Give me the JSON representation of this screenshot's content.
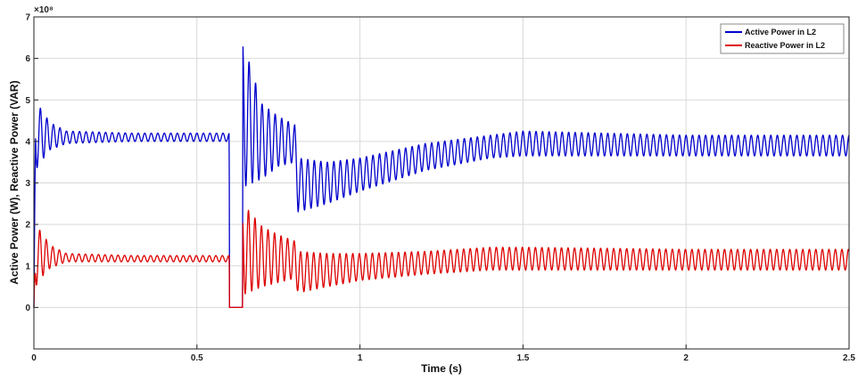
{
  "chart_data": {
    "type": "line",
    "title": "",
    "xlabel": "Time (s)",
    "ylabel": "Active Power (W), Reactive Power (VAR)",
    "y_exponent_label": "×10⁸",
    "xlim": [
      0,
      2.5
    ],
    "ylim": [
      -1,
      7
    ],
    "x_ticks": [
      0,
      0.5,
      1,
      1.5,
      2,
      2.5
    ],
    "x_tick_labels": [
      "0",
      "0.5",
      "1",
      "1.5",
      "2",
      "2.5"
    ],
    "y_ticks": [
      0,
      1,
      2,
      3,
      4,
      5,
      6,
      7
    ],
    "y_tick_labels": [
      "0",
      "1",
      "2",
      "3",
      "4",
      "5",
      "6",
      "7"
    ],
    "grid": true,
    "legend_position": "top-right",
    "series": [
      {
        "name": "Active Power in L2",
        "color": "#0000cc",
        "envelope": {
          "x": [
            0,
            0.005,
            0.02,
            0.05,
            0.1,
            0.3,
            0.599,
            0.6,
            0.64,
            0.641,
            0.7,
            0.75,
            0.8,
            0.81,
            0.9,
            1.0,
            1.2,
            1.4,
            1.5,
            2.0,
            2.5
          ],
          "upper": [
            0,
            4.9,
            4.8,
            4.45,
            4.25,
            4.2,
            4.2,
            0,
            0,
            6.4,
            4.9,
            4.6,
            4.4,
            3.6,
            3.5,
            3.6,
            3.95,
            4.15,
            4.25,
            4.15,
            4.15
          ],
          "lower": [
            0,
            3.3,
            3.5,
            3.8,
            3.95,
            4.0,
            4.0,
            0,
            0,
            2.9,
            3.1,
            3.4,
            3.5,
            2.3,
            2.5,
            2.8,
            3.3,
            3.6,
            3.65,
            3.65,
            3.65
          ]
        }
      },
      {
        "name": "Reactive Power in L2",
        "color": "#dd0000",
        "envelope": {
          "x": [
            0,
            0.005,
            0.02,
            0.05,
            0.1,
            0.3,
            0.599,
            0.6,
            0.64,
            0.641,
            0.7,
            0.75,
            0.8,
            0.81,
            0.9,
            1.0,
            1.2,
            1.4,
            1.5,
            2.0,
            2.5
          ],
          "upper": [
            0,
            1.95,
            1.85,
            1.5,
            1.3,
            1.25,
            1.25,
            0,
            0,
            2.5,
            1.95,
            1.75,
            1.6,
            1.35,
            1.3,
            1.3,
            1.35,
            1.45,
            1.45,
            1.4,
            1.4
          ],
          "lower": [
            0,
            0.5,
            0.7,
            0.95,
            1.1,
            1.1,
            1.1,
            0,
            0,
            0.3,
            0.5,
            0.6,
            0.7,
            0.35,
            0.5,
            0.65,
            0.8,
            0.9,
            0.9,
            0.9,
            0.9
          ]
        }
      }
    ]
  }
}
